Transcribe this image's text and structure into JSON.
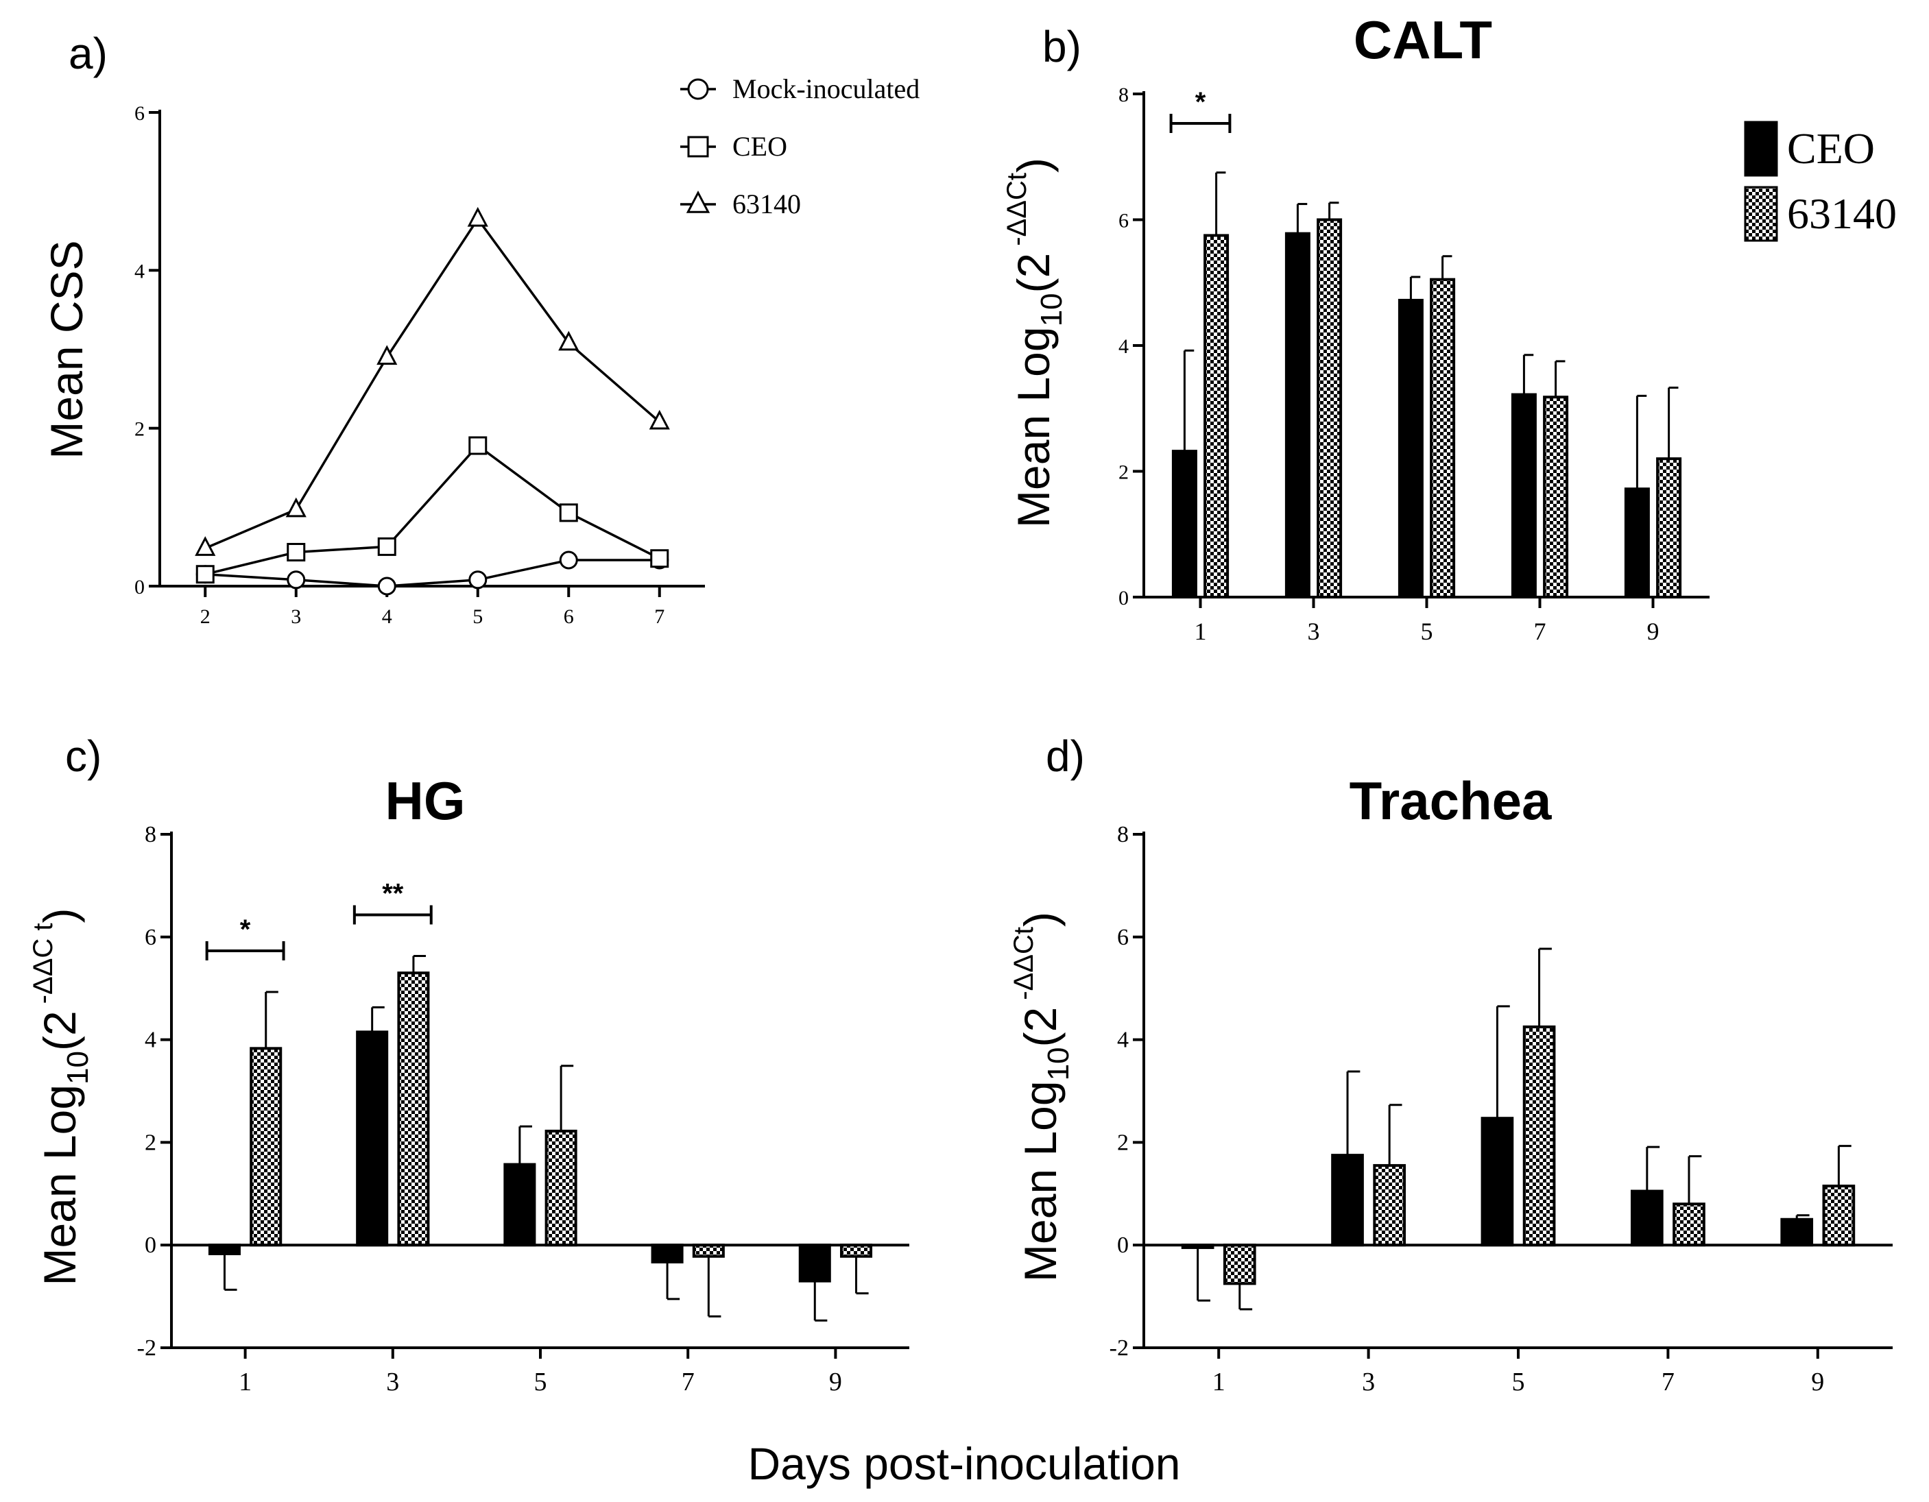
{
  "x_common_label": "Days post-inoculation",
  "ylabel_css": "Mean CSS",
  "ylabel_log": {
    "main": "Mean Log",
    "sub": "10",
    "open": "(2",
    "close": ")",
    "exp_b": "-ΔΔCt",
    "exp_c": "-ΔΔC t",
    "exp_d": "-ΔΔCt"
  },
  "chart_data": [
    {
      "panel": "a)",
      "type": "line",
      "title": "",
      "xlabel": "Days post-inoculation",
      "ylabel": "Mean CSS",
      "x": [
        2,
        3,
        4,
        5,
        6,
        7
      ],
      "xlim": [
        1.5,
        7.5
      ],
      "ylim": [
        0,
        6
      ],
      "yticks": [
        0,
        2,
        4,
        6
      ],
      "legend_position": "top-right",
      "series": [
        {
          "name": "Mock-inoculated",
          "marker": "circle",
          "values": [
            0.15,
            0.08,
            0.0,
            0.08,
            0.33,
            0.33
          ]
        },
        {
          "name": "CEO",
          "marker": "square",
          "values": [
            0.15,
            0.43,
            0.5,
            1.78,
            0.93,
            0.35
          ]
        },
        {
          "name": "63140",
          "marker": "triangle",
          "values": [
            0.48,
            0.97,
            2.9,
            4.65,
            3.08,
            2.08
          ]
        }
      ]
    },
    {
      "panel": "b)",
      "type": "bar",
      "title": "CALT",
      "xlabel": "Days post-inoculation",
      "ylabel": "Mean Log10(2^-ΔΔCt)",
      "categories": [
        "1",
        "3",
        "5",
        "7",
        "9"
      ],
      "ylim": [
        0,
        8
      ],
      "yticks": [
        0,
        2,
        4,
        6,
        8
      ],
      "legend_position": "top-right",
      "series": [
        {
          "name": "CEO",
          "fill": "solid",
          "values": [
            2.32,
            5.78,
            4.72,
            3.22,
            1.72
          ],
          "errors": [
            1.6,
            0.47,
            0.37,
            0.63,
            1.48
          ]
        },
        {
          "name": "63140",
          "fill": "checker",
          "values": [
            5.75,
            6.0,
            5.05,
            3.18,
            2.2
          ],
          "errors": [
            1.0,
            0.27,
            0.37,
            0.57,
            1.13
          ]
        }
      ],
      "annotations": [
        {
          "label": "*",
          "category": "1"
        }
      ]
    },
    {
      "panel": "c)",
      "type": "bar",
      "title": "HG",
      "xlabel": "Days post-inoculation",
      "ylabel": "Mean Log10(2^-ΔΔCt)",
      "categories": [
        "1",
        "3",
        "5",
        "7",
        "9"
      ],
      "ylim": [
        -2,
        8
      ],
      "yticks": [
        -2,
        0,
        2,
        4,
        6,
        8
      ],
      "series": [
        {
          "name": "CEO",
          "fill": "solid",
          "values": [
            -0.17,
            4.15,
            1.57,
            -0.33,
            -0.7
          ],
          "errors": [
            0.7,
            0.48,
            0.74,
            0.72,
            0.77
          ]
        },
        {
          "name": "63140",
          "fill": "checker",
          "values": [
            3.83,
            5.3,
            2.22,
            -0.22,
            -0.22
          ],
          "errors": [
            1.1,
            0.33,
            1.27,
            1.17,
            0.72
          ]
        }
      ],
      "annotations": [
        {
          "label": "*",
          "category": "1"
        },
        {
          "label": "**",
          "category": "3"
        }
      ]
    },
    {
      "panel": "d)",
      "type": "bar",
      "title": "Trachea",
      "xlabel": "Days post-inoculation",
      "ylabel": "Mean Log10(2^-ΔΔCt)",
      "categories": [
        "1",
        "3",
        "5",
        "7",
        "9"
      ],
      "ylim": [
        -2,
        8
      ],
      "yticks": [
        -2,
        0,
        2,
        4,
        6,
        8
      ],
      "series": [
        {
          "name": "CEO",
          "fill": "solid",
          "values": [
            -0.05,
            1.75,
            2.47,
            1.05,
            0.5
          ],
          "errors": [
            1.03,
            1.63,
            2.18,
            0.86,
            0.08
          ]
        },
        {
          "name": "63140",
          "fill": "checker",
          "values": [
            -0.75,
            1.55,
            4.25,
            0.8,
            1.15
          ],
          "errors": [
            0.5,
            1.18,
            1.52,
            0.93,
            0.78
          ]
        }
      ]
    }
  ]
}
